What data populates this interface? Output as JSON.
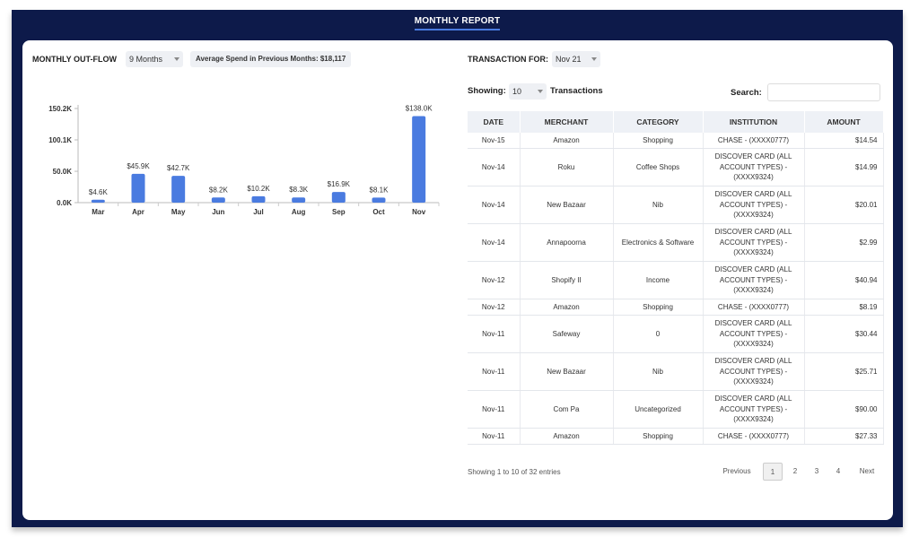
{
  "header": {
    "title": "MONTHLY REPORT"
  },
  "left": {
    "outflow_label": "MONTHLY OUT-FLOW",
    "period_select": "9 Months",
    "avg_spend": "Average Spend in Previous Months:  $18,117"
  },
  "colors": {
    "frame": "#0d1a4a",
    "bar": "#4a7be0",
    "accent": "#4a7be0"
  },
  "chart_data": {
    "type": "bar",
    "categories": [
      "Mar",
      "Apr",
      "May",
      "Jun",
      "Jul",
      "Aug",
      "Sep",
      "Oct",
      "Nov"
    ],
    "values": [
      4.6,
      45.9,
      42.7,
      8.2,
      10.2,
      8.3,
      16.9,
      8.1,
      138.0
    ],
    "data_labels": [
      "$4.6K",
      "$45.9K",
      "$42.7K",
      "$8.2K",
      "$10.2K",
      "$8.3K",
      "$16.9K",
      "$8.1K",
      "$138.0K"
    ],
    "yticks": [
      "0.0K",
      "50.0K",
      "100.1K",
      "150.2K"
    ],
    "ytick_values": [
      0,
      50.0,
      100.1,
      150.2
    ],
    "ylim": [
      0,
      150.2
    ],
    "grid": false
  },
  "right": {
    "transaction_for_label": "TRANSACTION FOR:",
    "month_select": "Nov 21",
    "showing_label": "Showing:",
    "page_size": "10",
    "transactions_label": "Transactions",
    "search_label": "Search:",
    "search_value": ""
  },
  "table": {
    "headers": [
      "DATE",
      "MERCHANT",
      "CATEGORY",
      "INSTITUTION",
      "AMOUNT"
    ],
    "rows": [
      [
        "Nov-15",
        "Amazon",
        "Shopping",
        "CHASE - (XXXX0777)",
        "$14.54"
      ],
      [
        "Nov-14",
        "Roku",
        "Coffee Shops",
        "DISCOVER CARD (ALL ACCOUNT TYPES) - (XXXX9324)",
        "$14.99"
      ],
      [
        "Nov-14",
        "New Bazaar",
        "Nib",
        "DISCOVER CARD (ALL ACCOUNT TYPES) - (XXXX9324)",
        "$20.01"
      ],
      [
        "Nov-14",
        "Annapoorna",
        "Electronics & Software",
        "DISCOVER CARD (ALL ACCOUNT TYPES) - (XXXX9324)",
        "$2.99"
      ],
      [
        "Nov-12",
        "Shopify II",
        "Income",
        "DISCOVER CARD (ALL ACCOUNT TYPES) - (XXXX9324)",
        "$40.94"
      ],
      [
        "Nov-12",
        "Amazon",
        "Shopping",
        "CHASE - (XXXX0777)",
        "$8.19"
      ],
      [
        "Nov-11",
        "Safeway",
        "0",
        "DISCOVER CARD (ALL ACCOUNT TYPES) - (XXXX9324)",
        "$30.44"
      ],
      [
        "Nov-11",
        "New Bazaar",
        "Nib",
        "DISCOVER CARD (ALL ACCOUNT TYPES) - (XXXX9324)",
        "$25.71"
      ],
      [
        "Nov-11",
        "Com Pa",
        "Uncategorized",
        "DISCOVER CARD (ALL ACCOUNT TYPES) - (XXXX9324)",
        "$90.00"
      ],
      [
        "Nov-11",
        "Amazon",
        "Shopping",
        "CHASE - (XXXX0777)",
        "$27.33"
      ]
    ]
  },
  "footer": {
    "entries_text": "Showing 1 to 10 of 32 entries",
    "previous": "Previous",
    "pages": [
      "1",
      "2",
      "3",
      "4"
    ],
    "next": "Next"
  }
}
